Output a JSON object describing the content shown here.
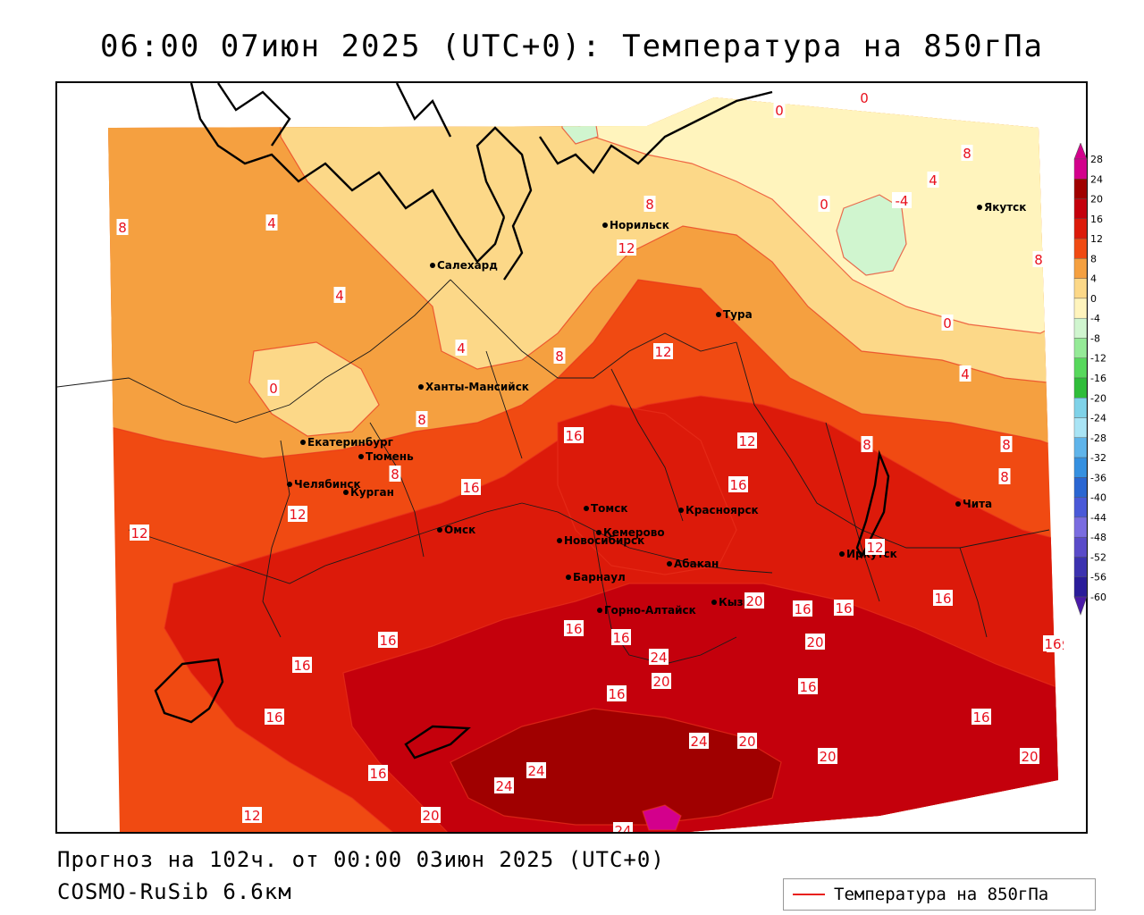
{
  "title": "06:00 07июн 2025 (UTC+0): Температура на 850гПа",
  "footer": {
    "forecast": "Прогноз на 102ч. от 00:00 03июн 2025 (UTC+0)",
    "model": "COSMO-RuSib 6.6км"
  },
  "legend": {
    "label": "Температура на 850гПа",
    "color": "#e8201c"
  },
  "colorbar": {
    "levels": [
      {
        "label": "28",
        "color": "#d3008c"
      },
      {
        "label": "24",
        "color": "#a00000"
      },
      {
        "label": "20",
        "color": "#c4000c"
      },
      {
        "label": "16",
        "color": "#dc1a0a"
      },
      {
        "label": "12",
        "color": "#f04a12"
      },
      {
        "label": "8",
        "color": "#f5a040"
      },
      {
        "label": "4",
        "color": "#fcd888"
      },
      {
        "label": "0",
        "color": "#fff4bd"
      },
      {
        "label": "-4",
        "color": "#d0f5cf"
      },
      {
        "label": "-8",
        "color": "#95ea97"
      },
      {
        "label": "-12",
        "color": "#57d85c"
      },
      {
        "label": "-16",
        "color": "#2fbd3a"
      },
      {
        "label": "-20",
        "color": "#7fd2e8"
      },
      {
        "label": "-24",
        "color": "#a9e4f5"
      },
      {
        "label": "-28",
        "color": "#5fb4ea"
      },
      {
        "label": "-32",
        "color": "#3590e0"
      },
      {
        "label": "-36",
        "color": "#2a66d2"
      },
      {
        "label": "-40",
        "color": "#4a59d8"
      },
      {
        "label": "-44",
        "color": "#7a6ce0"
      },
      {
        "label": "-48",
        "color": "#5a4bc9"
      },
      {
        "label": "-52",
        "color": "#3c32b0"
      },
      {
        "label": "-56",
        "color": "#2a1c9a"
      },
      {
        "label": "-60",
        "color": "#4a1aa8"
      }
    ]
  },
  "cities": [
    {
      "name": "Норильск"
    },
    {
      "name": "Якутск"
    },
    {
      "name": "Салехард"
    },
    {
      "name": "Тура"
    },
    {
      "name": "Ханты-Мансийск"
    },
    {
      "name": "Екатеринбург"
    },
    {
      "name": "Тюмень"
    },
    {
      "name": "Челябинск"
    },
    {
      "name": "Курган"
    },
    {
      "name": "Омск"
    },
    {
      "name": "Новосибирск"
    },
    {
      "name": "Томск"
    },
    {
      "name": "Кемерово"
    },
    {
      "name": "Красноярск"
    },
    {
      "name": "Абакан"
    },
    {
      "name": "Барнаул"
    },
    {
      "name": "Горно-Алтайск"
    },
    {
      "name": "Кызыл"
    },
    {
      "name": "Иркутск"
    },
    {
      "name": "Чита"
    }
  ],
  "isotherm_labels": [
    "0",
    "0",
    "8",
    "4",
    "-4",
    "0",
    "8",
    "8",
    "4",
    "4",
    "0",
    "8",
    "8",
    "8",
    "12",
    "4",
    "0",
    "4",
    "8",
    "16",
    "12",
    "8",
    "8",
    "8",
    "16",
    "16",
    "12",
    "12",
    "12",
    "16",
    "16",
    "16",
    "12",
    "16",
    "16",
    "16",
    "16",
    "16",
    "20",
    "20",
    "24",
    "20",
    "20",
    "20",
    "16",
    "16",
    "12",
    "16",
    "20",
    "24",
    "24",
    "24",
    "20",
    "20",
    "24",
    "12",
    "16",
    "16"
  ]
}
